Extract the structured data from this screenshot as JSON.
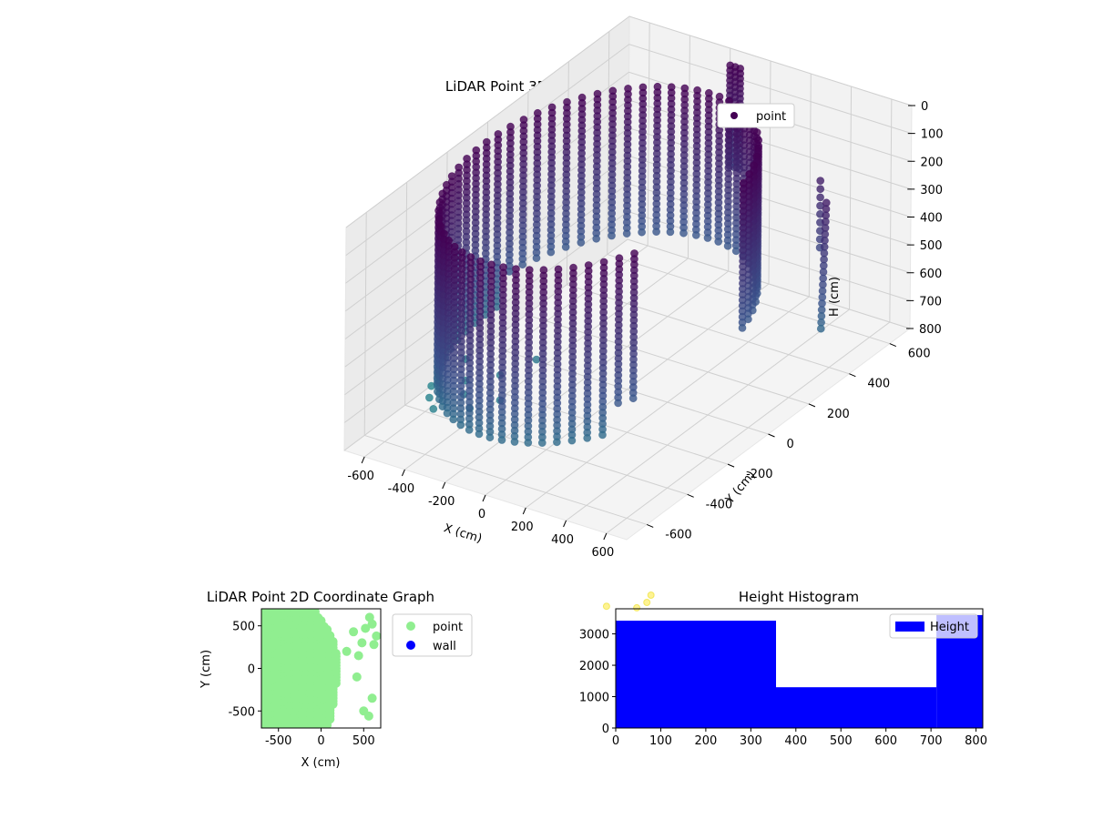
{
  "chart_data": [
    {
      "type": "scatter",
      "title": "LiDAR Point 3D Coordinate Graph",
      "xlabel": "X (cm)",
      "ylabel": "Y (cm)",
      "zlabel": "H (cm)",
      "xlim": [
        -700,
        700
      ],
      "ylim": [
        -700,
        700
      ],
      "zlim": [
        800,
        0
      ],
      "x_ticks": [
        -600,
        -400,
        -200,
        0,
        200,
        400,
        600
      ],
      "y_ticks": [
        -600,
        -400,
        -200,
        0,
        200,
        400,
        600
      ],
      "z_ticks": [
        0,
        100,
        200,
        300,
        400,
        500,
        600,
        700,
        800
      ],
      "legend": [
        "point"
      ],
      "legend_position": "top-right",
      "grid": true,
      "colormap": "viridis",
      "wall": {
        "center_x": -50,
        "center_y": -100,
        "radius": 560,
        "h_min": 0,
        "h_max": 600,
        "arc_degrees": [
          20,
          330
        ]
      },
      "floor_scatter": [
        [
          -620,
          -350,
          740
        ],
        [
          -560,
          -420,
          730
        ],
        [
          -500,
          -300,
          720
        ],
        [
          -480,
          -480,
          720
        ],
        [
          -430,
          -380,
          710
        ],
        [
          -380,
          -250,
          700
        ],
        [
          -330,
          -450,
          700
        ],
        [
          -600,
          -200,
          720
        ],
        [
          -300,
          -150,
          680
        ],
        [
          -250,
          -380,
          690
        ]
      ],
      "remote_points": [
        [
          550,
          -650,
          790
        ],
        [
          650,
          -600,
          800
        ],
        [
          660,
          -560,
          800
        ],
        [
          640,
          -520,
          800
        ],
        [
          700,
          -700,
          800
        ]
      ],
      "colors": {
        "top": "#440154",
        "mid": "#3b528b",
        "low": "#21908d",
        "far": "#fde725"
      }
    },
    {
      "type": "scatter",
      "title": "LiDAR Point 2D Coordinate Graph",
      "xlabel": "X (cm)",
      "ylabel": "Y (cm)",
      "xlim": [
        -700,
        700
      ],
      "ylim": [
        -700,
        700
      ],
      "x_ticks": [
        -500,
        0,
        500
      ],
      "y_ticks": [
        -500,
        0,
        500
      ],
      "legend": [
        "point",
        "wall"
      ],
      "legend_position": "outside-right",
      "series": [
        {
          "name": "point",
          "color": "#90ee90"
        },
        {
          "name": "wall",
          "color": "#0000ff"
        }
      ],
      "sparse_points": [
        [
          380,
          430
        ],
        [
          520,
          470
        ],
        [
          600,
          520
        ],
        [
          480,
          300
        ],
        [
          620,
          280
        ],
        [
          440,
          150
        ],
        [
          650,
          380
        ],
        [
          420,
          -100
        ],
        [
          600,
          -350
        ],
        [
          560,
          -560
        ],
        [
          500,
          -500
        ],
        [
          300,
          200
        ],
        [
          570,
          600
        ]
      ]
    },
    {
      "type": "bar",
      "title": "Height Histogram",
      "legend": [
        "Height"
      ],
      "legend_position": "top-right",
      "bins": [
        {
          "start": 0,
          "end": 356,
          "count": 3420
        },
        {
          "start": 356,
          "end": 712,
          "count": 1300
        },
        {
          "start": 712,
          "end": 815,
          "count": 3600
        }
      ],
      "xlim": [
        0,
        815
      ],
      "ylim": [
        0,
        3800
      ],
      "x_ticks": [
        0,
        100,
        200,
        300,
        400,
        500,
        600,
        700,
        800
      ],
      "y_ticks": [
        0,
        1000,
        2000,
        3000
      ],
      "color": "#0000ff"
    }
  ]
}
